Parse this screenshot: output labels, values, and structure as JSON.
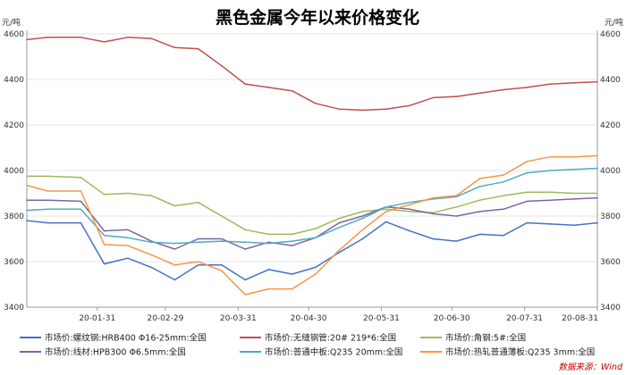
{
  "chart_data": {
    "type": "line",
    "title": "黑色金属今年以来价格变化",
    "unit_left": "元/吨",
    "unit_right": "元/吨",
    "ylim": [
      3400,
      4600
    ],
    "yticks": [
      3400,
      3600,
      3800,
      4000,
      4200,
      4400,
      4600
    ],
    "ytick_labels": [
      "3400",
      "3600",
      "3800",
      "4000",
      "4200",
      "4400",
      "4600"
    ],
    "xlim": [
      "2020-01-01",
      "2020-08-31"
    ],
    "xticks": [
      {
        "date": "2020-01-31",
        "label": "20-01-31"
      },
      {
        "date": "2020-02-29",
        "label": "20-02-29"
      },
      {
        "date": "2020-03-31",
        "label": "20-03-31"
      },
      {
        "date": "2020-04-30",
        "label": "20-04-30"
      },
      {
        "date": "2020-05-31",
        "label": "20-05-31"
      },
      {
        "date": "2020-06-30",
        "label": "20-06-30"
      },
      {
        "date": "2020-07-31",
        "label": "20-07-31"
      },
      {
        "date": "2020-08-31",
        "label": "20-08-31"
      }
    ],
    "x": [
      "2020-01-01",
      "2020-01-10",
      "2020-01-24",
      "2020-02-03",
      "2020-02-13",
      "2020-02-23",
      "2020-03-04",
      "2020-03-14",
      "2020-03-24",
      "2020-04-03",
      "2020-04-13",
      "2020-04-23",
      "2020-05-03",
      "2020-05-13",
      "2020-05-23",
      "2020-06-02",
      "2020-06-12",
      "2020-06-22",
      "2020-07-02",
      "2020-07-12",
      "2020-07-22",
      "2020-08-01",
      "2020-08-11",
      "2020-08-21",
      "2020-08-31"
    ],
    "series": [
      {
        "name": "市场价:螺纹钢:HRB400 Φ16-25mm:全国",
        "color": "#4472c4",
        "values": [
          3780,
          3770,
          3770,
          3590,
          3615,
          3575,
          3520,
          3585,
          3585,
          3520,
          3565,
          3545,
          3575,
          3640,
          3700,
          3775,
          3735,
          3700,
          3690,
          3720,
          3715,
          3770,
          3765,
          3760,
          3770
        ]
      },
      {
        "name": "市场价:无缝钢管:20# 219*6:全国",
        "color": "#c0504d",
        "values": [
          4575,
          4585,
          4585,
          4565,
          4585,
          4580,
          4540,
          4535,
          4460,
          4380,
          4365,
          4350,
          4295,
          4270,
          4265,
          4270,
          4285,
          4320,
          4325,
          4340,
          4355,
          4365,
          4380,
          4385,
          4390
        ]
      },
      {
        "name": "市场价:角钢:5#:全国",
        "color": "#9bbb59",
        "values": [
          3975,
          3975,
          3970,
          3895,
          3900,
          3890,
          3845,
          3860,
          3800,
          3740,
          3720,
          3720,
          3745,
          3790,
          3820,
          3830,
          3820,
          3815,
          3840,
          3870,
          3890,
          3905,
          3905,
          3900,
          3900
        ]
      },
      {
        "name": "市场价:线材:HPB300 Φ6.5mm:全国",
        "color": "#8064a2",
        "values": [
          3870,
          3870,
          3865,
          3735,
          3740,
          3690,
          3655,
          3700,
          3700,
          3655,
          3685,
          3670,
          3705,
          3770,
          3800,
          3840,
          3830,
          3810,
          3800,
          3820,
          3830,
          3865,
          3870,
          3875,
          3880
        ]
      },
      {
        "name": "市场价:普通中板:Q235 20mm:全国",
        "color": "#4bacc6",
        "values": [
          3825,
          3830,
          3830,
          3715,
          3705,
          3685,
          3680,
          3685,
          3690,
          3685,
          3680,
          3690,
          3705,
          3750,
          3790,
          3840,
          3860,
          3875,
          3885,
          3930,
          3950,
          3990,
          4000,
          4005,
          4010
        ]
      },
      {
        "name": "市场价:热轧普通薄板:Q235 3mm:全国",
        "color": "#f79646",
        "values": [
          3935,
          3910,
          3910,
          3675,
          3670,
          3630,
          3585,
          3600,
          3560,
          3455,
          3480,
          3480,
          3545,
          3650,
          3740,
          3820,
          3850,
          3880,
          3890,
          3965,
          3980,
          4040,
          4060,
          4060,
          4065
        ]
      }
    ]
  },
  "source": "数据来源：Wind"
}
